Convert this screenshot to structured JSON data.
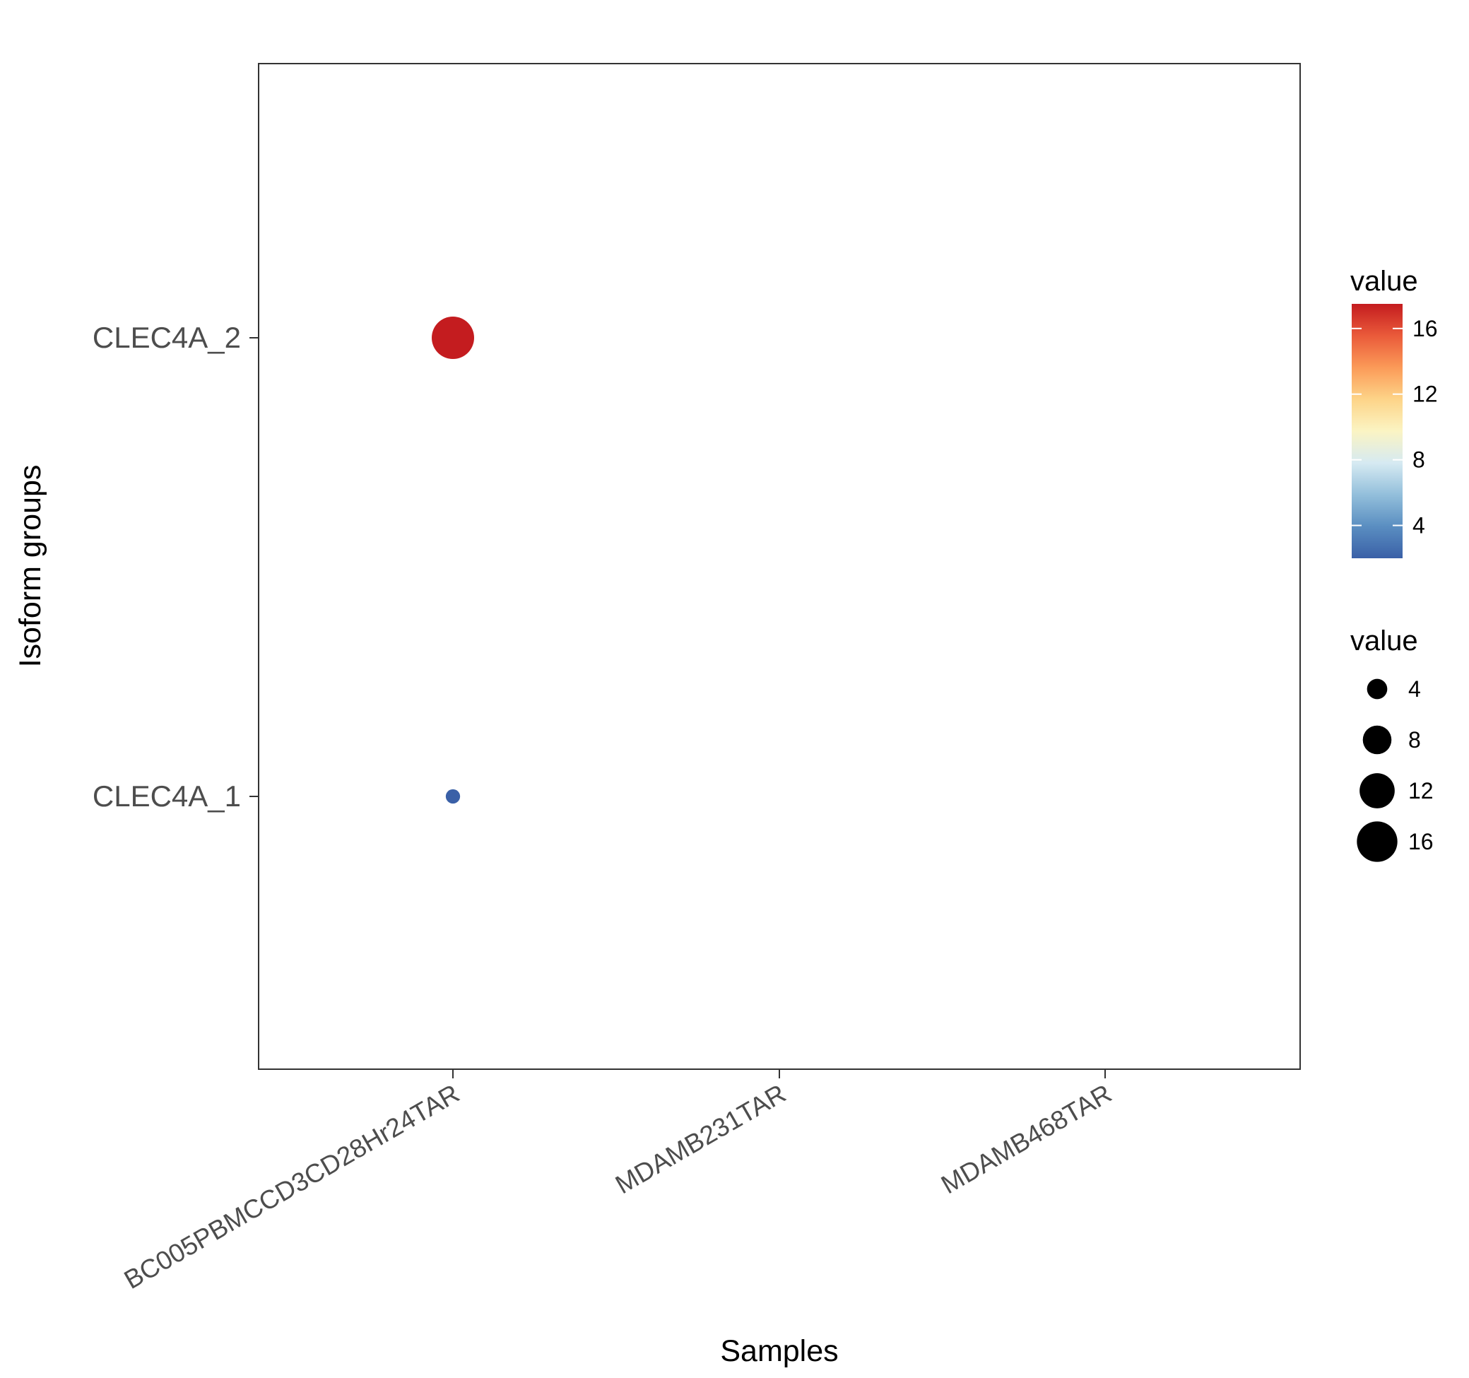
{
  "chart_data": {
    "type": "scatter",
    "xlabel": "Samples",
    "ylabel": "Isoform groups",
    "x_categories": [
      "BC005PBMCCD3CD28Hr24TAR",
      "MDAMB231TAR",
      "MDAMB468TAR"
    ],
    "y_categories": [
      "CLEC4A_1",
      "CLEC4A_2"
    ],
    "points": [
      {
        "x": "BC005PBMCCD3CD28Hr24TAR",
        "y": "CLEC4A_2",
        "value": 17.5
      },
      {
        "x": "BC005PBMCCD3CD28Hr24TAR",
        "y": "CLEC4A_1",
        "value": 2
      }
    ],
    "grid": false,
    "color_legend": {
      "title": "value",
      "breaks": [
        4,
        8,
        12,
        16
      ],
      "range": [
        2,
        17.5
      ],
      "colors": [
        "#3a60a7",
        "#5a8ec1",
        "#93bfdb",
        "#d6eaf2",
        "#fbf4c3",
        "#fdd488",
        "#fb9a58",
        "#ea5a3a",
        "#c41c1f"
      ]
    },
    "size_legend": {
      "title": "value",
      "breaks": [
        4,
        8,
        12,
        16
      ]
    },
    "legend_position": "right"
  }
}
